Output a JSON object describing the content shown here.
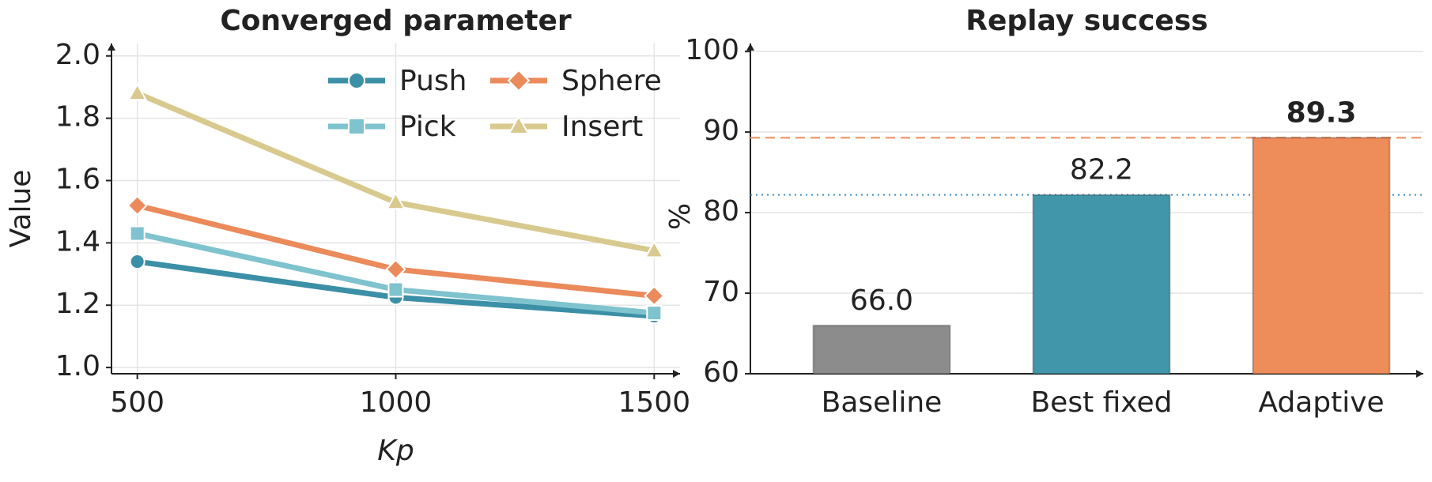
{
  "chart_data": [
    {
      "type": "line",
      "title": "Converged parameter",
      "x_label": "Kp",
      "y_label": "Value",
      "x": [
        500,
        1000,
        1500
      ],
      "xlim": [
        450,
        1550
      ],
      "xticks": [
        500,
        1000,
        1500
      ],
      "ylim": [
        0.98,
        2.04
      ],
      "yticks": [
        {
          "value": 1.0,
          "label": "1.0"
        },
        1.2,
        1.4,
        1.6,
        1.8,
        {
          "value": 2.0,
          "label": "2.0"
        }
      ],
      "grid": true,
      "legend": "upper right",
      "series": [
        {
          "name": "Push",
          "color": "#3b8fa7",
          "marker": "circle",
          "values": [
            1.34,
            1.225,
            1.165
          ]
        },
        {
          "name": "Pick",
          "color": "#7ec3cd",
          "marker": "square",
          "values": [
            1.43,
            1.25,
            1.175
          ]
        },
        {
          "name": "Sphere",
          "color": "#eb8a5b",
          "marker": "diamond",
          "values": [
            1.52,
            1.315,
            1.23
          ]
        },
        {
          "name": "Insert",
          "color": "#d8c98e",
          "marker": "triangle",
          "values": [
            1.88,
            1.53,
            1.375
          ]
        }
      ]
    },
    {
      "type": "bar",
      "title": "Replay success",
      "y_label": "%",
      "categories": [
        "Baseline",
        "Best fixed",
        "Adaptive"
      ],
      "values": [
        66.0,
        82.2,
        89.3
      ],
      "value_labels": [
        "66.0",
        "82.2",
        "89.3"
      ],
      "value_label_weights": [
        "normal",
        "normal",
        "bold"
      ],
      "colors": [
        "#8c8c8c",
        "#4296aa",
        "#ee8c5a"
      ],
      "reference_lines": [
        {
          "of": 2,
          "color": "#f0a27a",
          "style": "dashed"
        },
        {
          "of": 1,
          "color": "#3b8fc8",
          "style": "dotted"
        }
      ],
      "ylim": [
        60,
        101
      ],
      "yticks": [
        60,
        70,
        80,
        90,
        100
      ],
      "grid": true
    }
  ]
}
